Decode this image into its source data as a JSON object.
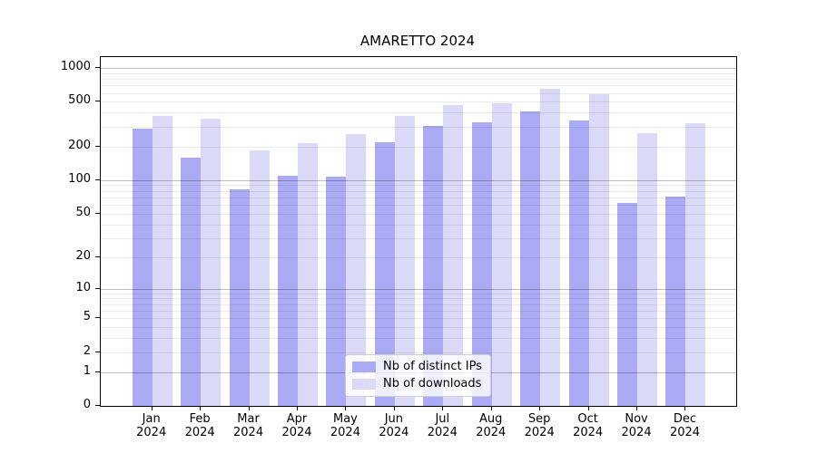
{
  "chart_data": {
    "type": "bar",
    "title": "AMARETTO 2024",
    "categories": [
      "Jan",
      "Feb",
      "Mar",
      "Apr",
      "May",
      "Jun",
      "Jul",
      "Aug",
      "Sep",
      "Oct",
      "Nov",
      "Dec"
    ],
    "category_year": "2024",
    "series": [
      {
        "name": "Nb of distinct IPs",
        "color": "#aaaaf5",
        "values": [
          290,
          159,
          83,
          110,
          108,
          218,
          304,
          327,
          409,
          341,
          63,
          71
        ]
      },
      {
        "name": "Nb of downloads",
        "color": "#dadaf8",
        "values": [
          374,
          356,
          185,
          213,
          257,
          373,
          470,
          488,
          657,
          588,
          261,
          323
        ]
      }
    ],
    "y_axis": {
      "scale": "log10(value+1)",
      "tick_values": [
        1000,
        500,
        200,
        100,
        50,
        20,
        10,
        5,
        2,
        1,
        0
      ],
      "major_gridline_values": [
        1,
        10,
        100,
        1000
      ],
      "minor_gridline_decades": [
        1,
        10,
        100
      ],
      "range": [
        0,
        1250
      ]
    },
    "legend_position": "bottom-center",
    "grid": true,
    "colors": {
      "spine": "#000000",
      "major_grid": "#bdbdbd",
      "minor_grid": "#ebebeb",
      "background": "#ffffff"
    }
  }
}
